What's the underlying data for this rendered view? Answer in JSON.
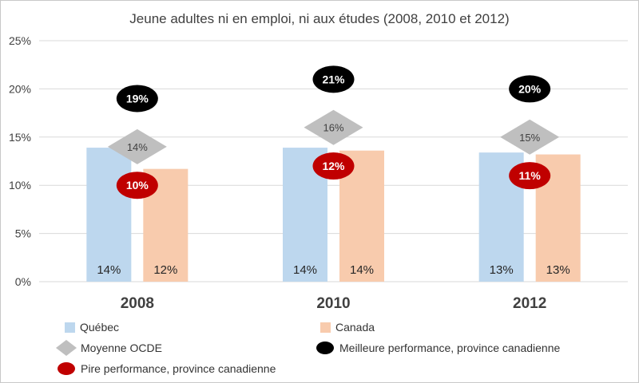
{
  "chart_data": {
    "type": "bar",
    "title": "Jeune adultes ni en emploi, ni aux études (2008, 2010 et 2012)",
    "categories": [
      "2008",
      "2010",
      "2012"
    ],
    "ylim": [
      0,
      25
    ],
    "yticks": [
      0,
      5,
      10,
      15,
      20,
      25
    ],
    "ytick_labels": [
      "0%",
      "5%",
      "10%",
      "15%",
      "20%",
      "25%"
    ],
    "grid": true,
    "legend_position": "bottom",
    "series": [
      {
        "name": "Québec",
        "kind": "bar",
        "color": "#bdd7ee",
        "values": [
          13.9,
          13.9,
          13.4
        ],
        "labels": [
          "14%",
          "14%",
          "13%"
        ]
      },
      {
        "name": "Canada",
        "kind": "bar",
        "color": "#f8cbad",
        "values": [
          11.7,
          13.6,
          13.2
        ],
        "labels": [
          "12%",
          "14%",
          "13%"
        ]
      },
      {
        "name": "Moyenne OCDE",
        "kind": "diamond",
        "color": "#bfbfbf",
        "values": [
          14,
          16,
          15
        ],
        "labels": [
          "14%",
          "16%",
          "15%"
        ]
      },
      {
        "name": "Meilleure performance, province canadienne",
        "kind": "ellipse",
        "color": "#000000",
        "values": [
          19,
          21,
          20
        ],
        "labels": [
          "19%",
          "21%",
          "20%"
        ]
      },
      {
        "name": "Pire performance, province canadienne",
        "kind": "ellipse",
        "color": "#c00000",
        "values": [
          10,
          12,
          11
        ],
        "labels": [
          "10%",
          "12%",
          "11%"
        ]
      }
    ]
  }
}
